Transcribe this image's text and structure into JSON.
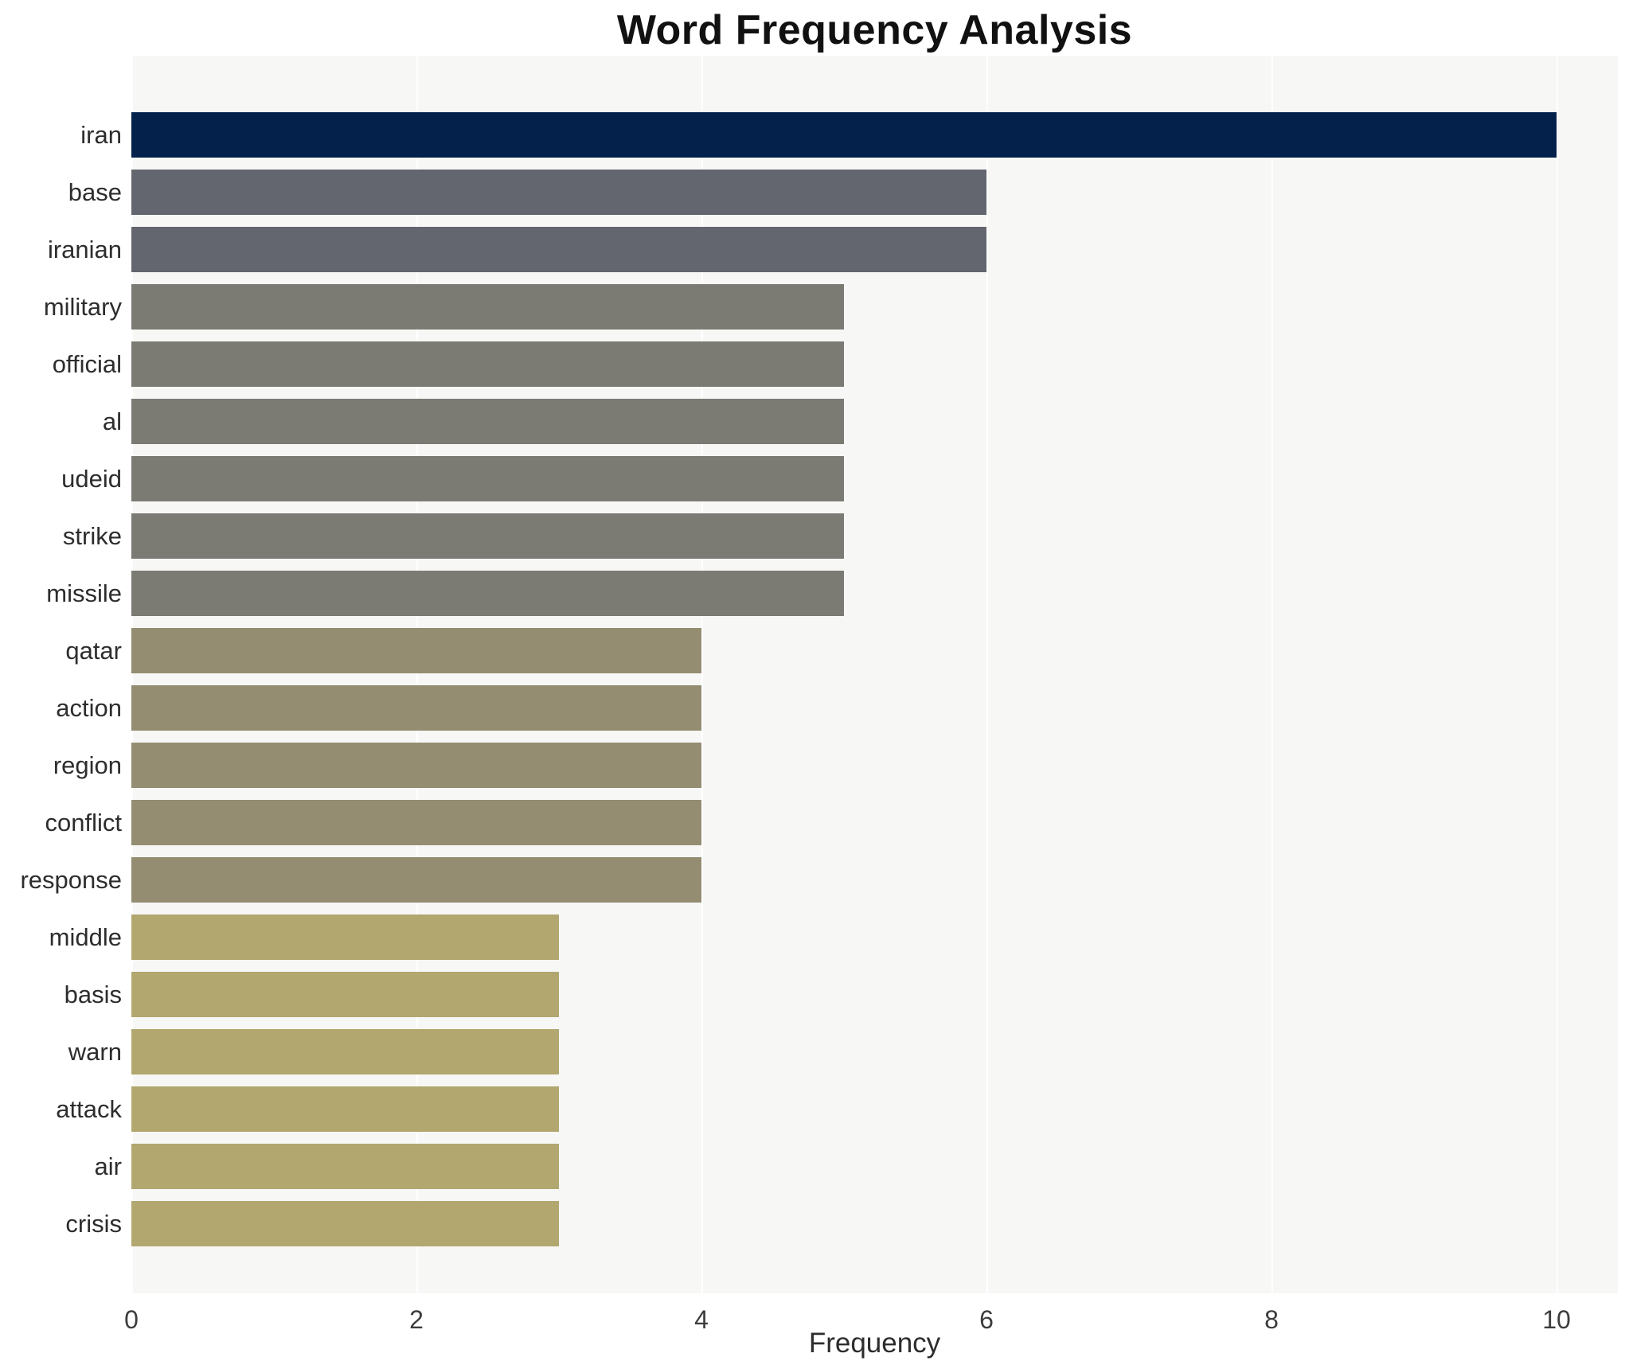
{
  "title": "Word Frequency Analysis",
  "chart_data": {
    "type": "bar",
    "orientation": "horizontal",
    "title": "Word Frequency Analysis",
    "xlabel": "Frequency",
    "ylabel": "",
    "categories": [
      "iran",
      "base",
      "iranian",
      "military",
      "official",
      "al",
      "udeid",
      "strike",
      "missile",
      "qatar",
      "action",
      "region",
      "conflict",
      "response",
      "middle",
      "basis",
      "warn",
      "attack",
      "air",
      "crisis"
    ],
    "values": [
      10,
      6,
      6,
      5,
      5,
      5,
      5,
      5,
      5,
      4,
      4,
      4,
      4,
      4,
      3,
      3,
      3,
      3,
      3,
      3
    ],
    "bar_colors": [
      "#03214a",
      "#63666e",
      "#63666e",
      "#7b7a73",
      "#7b7a73",
      "#7b7a73",
      "#7b7a73",
      "#7b7a73",
      "#7b7a73",
      "#948d72",
      "#948d72",
      "#948d72",
      "#948d72",
      "#948d72",
      "#b1a76f",
      "#b1a76f",
      "#b1a76f",
      "#b1a76f",
      "#b1a76f",
      "#b1a76f"
    ],
    "x_ticks": [
      0,
      2,
      4,
      6,
      8,
      10
    ],
    "xlim": [
      0,
      10.43
    ],
    "legend": "none",
    "grid": "vertical-white-lines",
    "panel_bg": "#f7f7f6",
    "grid_color": "#ffffff",
    "label_color": "#2d2d2d",
    "tick_color": "#3c3c3c"
  }
}
